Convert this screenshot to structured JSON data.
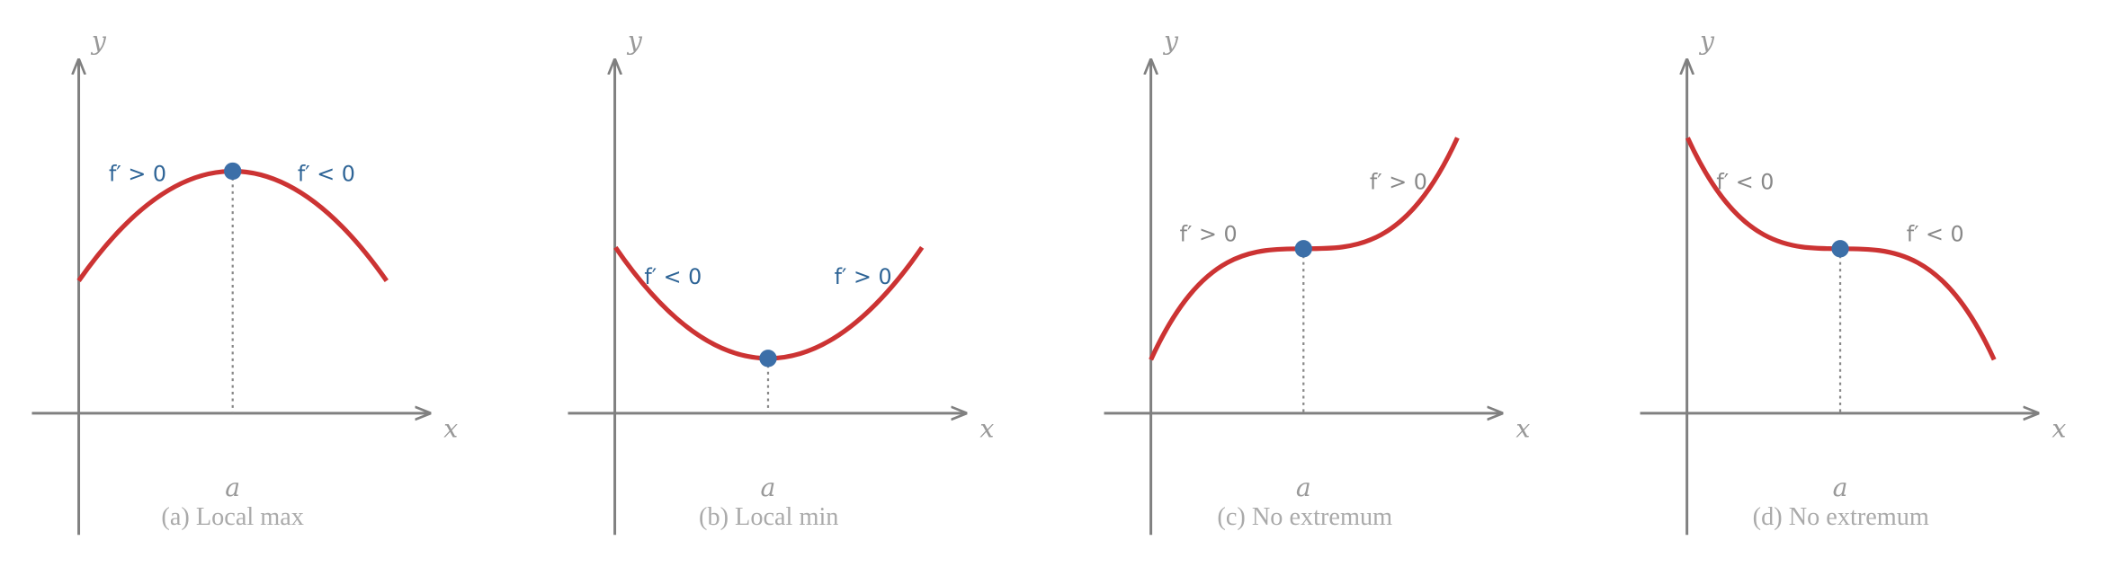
{
  "panels": [
    {
      "y_label": "y",
      "x_label": "x",
      "point_label": "a",
      "left_label": "f′ > 0",
      "right_label": "f′ < 0",
      "caption": "(a) Local max"
    },
    {
      "y_label": "y",
      "x_label": "x",
      "point_label": "a",
      "left_label": "f′ < 0",
      "right_label": "f′ > 0",
      "caption": "(b) Local min"
    },
    {
      "y_label": "y",
      "x_label": "x",
      "point_label": "a",
      "left_label": "f′ > 0",
      "right_label": "f′ > 0",
      "caption": "(c) No extremum"
    },
    {
      "y_label": "y",
      "x_label": "x",
      "point_label": "a",
      "left_label": "f′ < 0",
      "right_label": "f′ < 0",
      "caption": "(d) No extremum"
    }
  ]
}
